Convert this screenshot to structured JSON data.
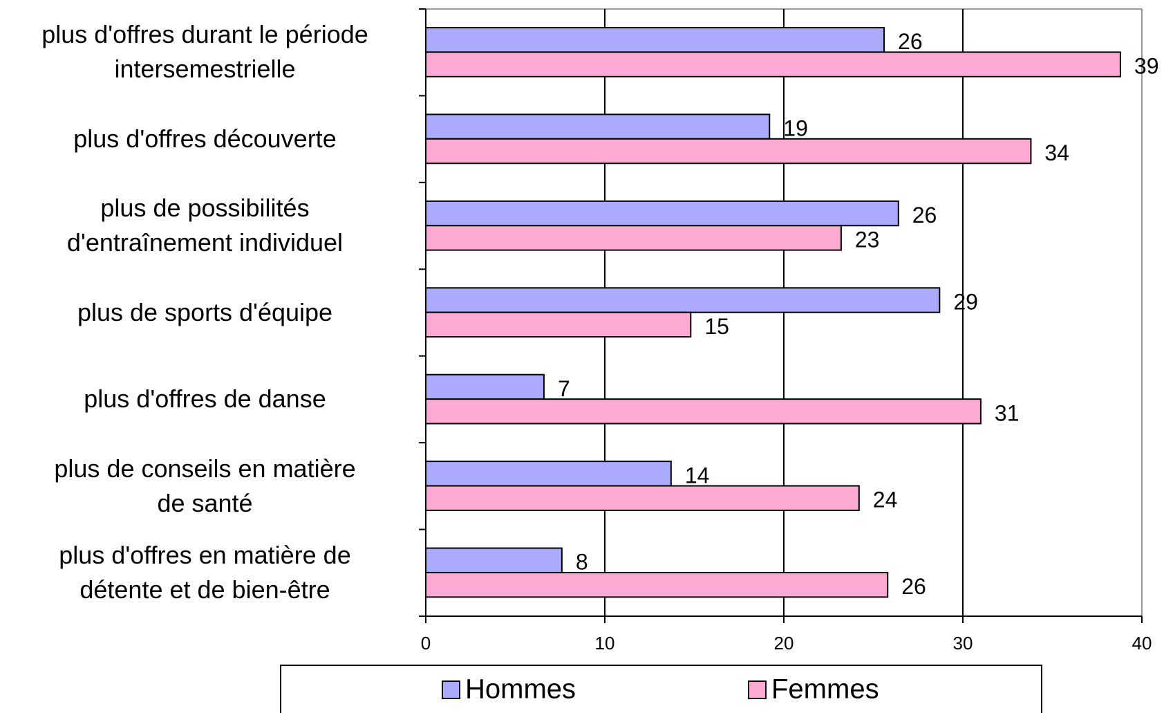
{
  "chart_data": {
    "type": "bar",
    "orientation": "horizontal",
    "categories": [
      "plus d'offres durant le période\nintersemestrielle",
      "plus d'offres découverte",
      "plus de possibilités\nd'entraînement individuel",
      "plus de sports d'équipe",
      "plus d'offres de danse",
      "plus de conseils en matière\nde santé",
      "plus d'offres en matière de\ndétente et de bien-être"
    ],
    "series": [
      {
        "name": "Hommes",
        "color": "#aaaaff",
        "values": [
          25.6,
          19.2,
          26.4,
          28.7,
          6.6,
          13.7,
          7.6
        ],
        "value_labels": [
          "26",
          "19",
          "26",
          "29",
          "7",
          "14",
          "8"
        ]
      },
      {
        "name": "Femmes",
        "color": "#ffaad4",
        "values": [
          38.8,
          33.8,
          23.2,
          14.8,
          31.0,
          24.2,
          25.8
        ],
        "value_labels": [
          "39",
          "34",
          "23",
          "15",
          "31",
          "24",
          "26"
        ]
      }
    ],
    "xlim": [
      0,
      40
    ],
    "xticks": [
      0,
      10,
      20,
      30,
      40
    ],
    "grid": true,
    "legend": "bottom"
  }
}
